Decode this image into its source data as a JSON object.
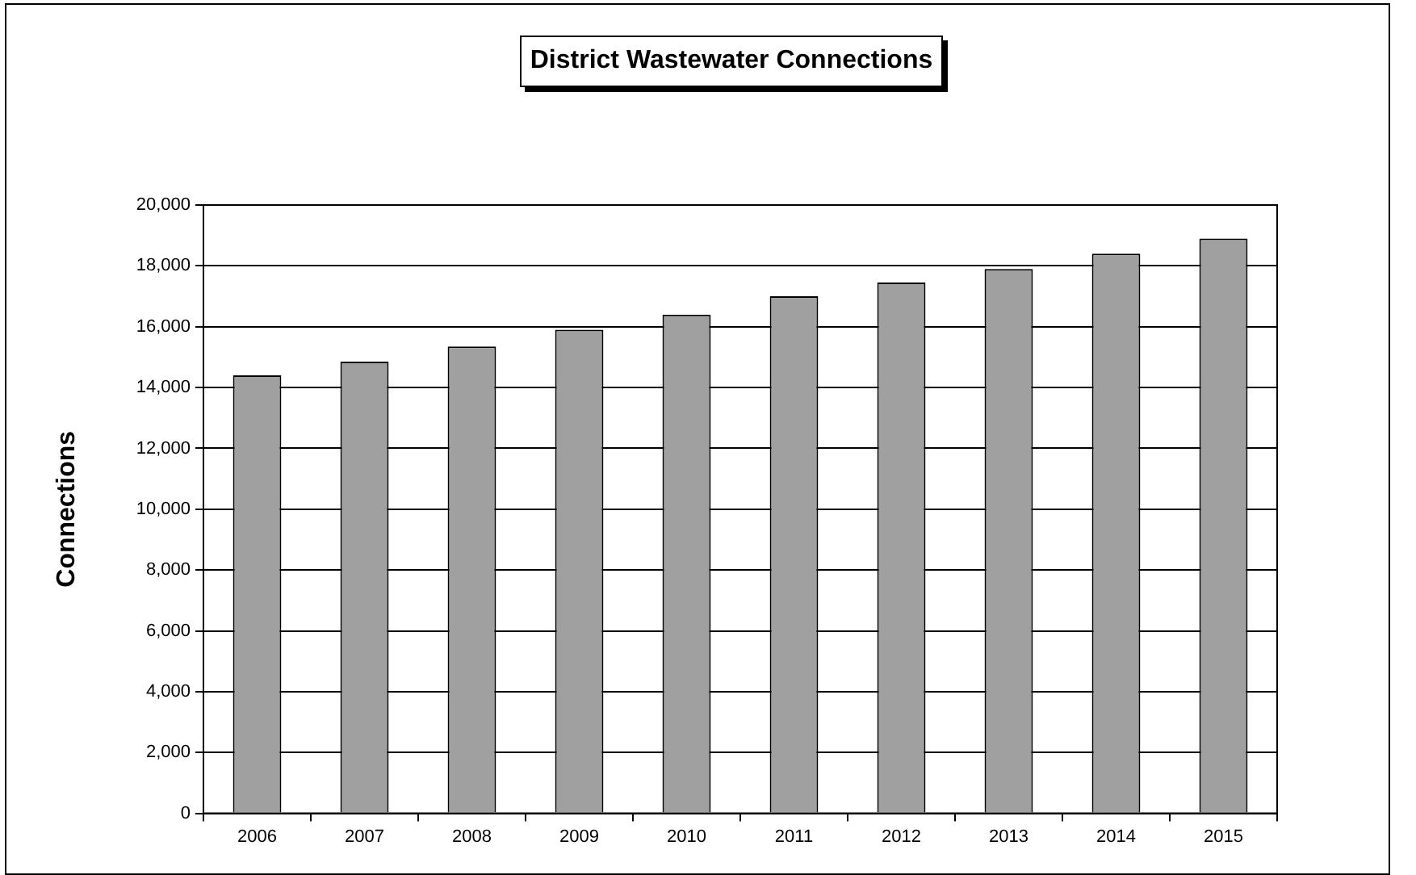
{
  "chart_data": {
    "type": "bar",
    "title": "District Wastewater Connections",
    "ylabel": "Connections",
    "categories": [
      "2006",
      "2007",
      "2008",
      "2009",
      "2010",
      "2011",
      "2012",
      "2013",
      "2014",
      "2015"
    ],
    "values": [
      14400,
      14850,
      15350,
      15900,
      16400,
      17000,
      17450,
      17900,
      18400,
      18900
    ],
    "color": "#a0a0a0",
    "ylim": [
      0,
      20000
    ],
    "yticks": [
      0,
      {
        "value": 2000,
        "label": "2,000"
      },
      {
        "value": 4000,
        "label": "4,000"
      },
      {
        "value": 6000,
        "label": "6,000"
      },
      {
        "value": 8000,
        "label": "8,000"
      },
      {
        "value": 10000,
        "label": "10,000"
      },
      {
        "value": 12000,
        "label": "12,000"
      },
      {
        "value": 14000,
        "label": "14,000"
      },
      {
        "value": 16000,
        "label": "16,000"
      },
      {
        "value": 18000,
        "label": "18,000"
      },
      {
        "value": 20000,
        "label": "20,000"
      }
    ],
    "grid": "y",
    "legend": false
  }
}
